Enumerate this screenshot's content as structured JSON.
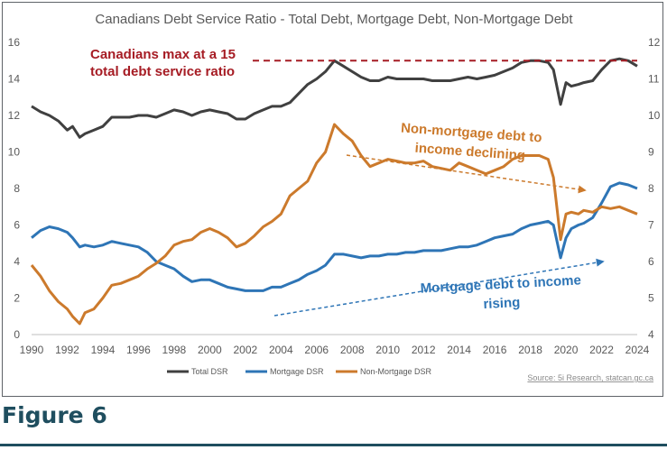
{
  "chart_data": {
    "type": "line",
    "title": "Canadians Debt Service Ratio - Total Debt, Mortgage Debt, Non-Mortgage Debt",
    "x_ticks": [
      "1990",
      "1992",
      "1994",
      "1996",
      "1998",
      "2000",
      "2002",
      "2004",
      "2006",
      "2008",
      "2010",
      "2012",
      "2014",
      "2016",
      "2018",
      "2020",
      "2022",
      "2024"
    ],
    "xlim": [
      1990,
      2024
    ],
    "y_left": {
      "ticks": [
        "0",
        "2",
        "4",
        "6",
        "8",
        "10",
        "12",
        "14",
        "16"
      ],
      "lim": [
        0,
        16
      ]
    },
    "y_right": {
      "ticks": [
        "4",
        "5",
        "6",
        "7",
        "8",
        "9",
        "10",
        "11",
        "12"
      ],
      "lim": [
        4,
        12
      ]
    },
    "series": [
      {
        "name": "Total DSR",
        "axis": "left",
        "color": "#404040",
        "points": [
          [
            1990,
            12.5
          ],
          [
            1990.5,
            12.2
          ],
          [
            1991,
            12.0
          ],
          [
            1991.5,
            11.7
          ],
          [
            1992,
            11.2
          ],
          [
            1992.3,
            11.4
          ],
          [
            1992.7,
            10.8
          ],
          [
            1993,
            11.0
          ],
          [
            1993.5,
            11.2
          ],
          [
            1994,
            11.4
          ],
          [
            1994.5,
            11.9
          ],
          [
            1995,
            11.9
          ],
          [
            1995.5,
            11.9
          ],
          [
            1996,
            12.0
          ],
          [
            1996.5,
            12.0
          ],
          [
            1997,
            11.9
          ],
          [
            1997.5,
            12.1
          ],
          [
            1998,
            12.3
          ],
          [
            1998.5,
            12.2
          ],
          [
            1999,
            12.0
          ],
          [
            1999.5,
            12.2
          ],
          [
            2000,
            12.3
          ],
          [
            2000.5,
            12.2
          ],
          [
            2001,
            12.1
          ],
          [
            2001.5,
            11.8
          ],
          [
            2002,
            11.8
          ],
          [
            2002.5,
            12.1
          ],
          [
            2003,
            12.3
          ],
          [
            2003.5,
            12.5
          ],
          [
            2004,
            12.5
          ],
          [
            2004.5,
            12.7
          ],
          [
            2005,
            13.2
          ],
          [
            2005.5,
            13.7
          ],
          [
            2006,
            14.0
          ],
          [
            2006.5,
            14.4
          ],
          [
            2007,
            15.0
          ],
          [
            2007.5,
            14.7
          ],
          [
            2008,
            14.4
          ],
          [
            2008.5,
            14.1
          ],
          [
            2009,
            13.9
          ],
          [
            2009.5,
            13.9
          ],
          [
            2010,
            14.1
          ],
          [
            2010.5,
            14.0
          ],
          [
            2011,
            14.0
          ],
          [
            2011.5,
            14.0
          ],
          [
            2012,
            14.0
          ],
          [
            2012.5,
            13.9
          ],
          [
            2013,
            13.9
          ],
          [
            2013.5,
            13.9
          ],
          [
            2014,
            14.0
          ],
          [
            2014.5,
            14.1
          ],
          [
            2015,
            14.0
          ],
          [
            2015.5,
            14.1
          ],
          [
            2016,
            14.2
          ],
          [
            2016.5,
            14.4
          ],
          [
            2017,
            14.6
          ],
          [
            2017.5,
            14.9
          ],
          [
            2018,
            15.0
          ],
          [
            2018.5,
            15.0
          ],
          [
            2019,
            14.9
          ],
          [
            2019.3,
            14.5
          ],
          [
            2019.7,
            12.6
          ],
          [
            2020,
            13.8
          ],
          [
            2020.3,
            13.6
          ],
          [
            2020.7,
            13.7
          ],
          [
            2021,
            13.8
          ],
          [
            2021.5,
            13.9
          ],
          [
            2022,
            14.5
          ],
          [
            2022.5,
            15.0
          ],
          [
            2023,
            15.1
          ],
          [
            2023.5,
            15.0
          ],
          [
            2024,
            14.7
          ]
        ]
      },
      {
        "name": "Mortgage DSR",
        "axis": "left",
        "color": "#2e75b6",
        "points": [
          [
            1990,
            5.3
          ],
          [
            1990.5,
            5.7
          ],
          [
            1991,
            5.9
          ],
          [
            1991.5,
            5.8
          ],
          [
            1992,
            5.6
          ],
          [
            1992.3,
            5.3
          ],
          [
            1992.7,
            4.8
          ],
          [
            1993,
            4.9
          ],
          [
            1993.5,
            4.8
          ],
          [
            1994,
            4.9
          ],
          [
            1994.5,
            5.1
          ],
          [
            1995,
            5.0
          ],
          [
            1995.5,
            4.9
          ],
          [
            1996,
            4.8
          ],
          [
            1996.5,
            4.5
          ],
          [
            1997,
            4.0
          ],
          [
            1997.5,
            3.8
          ],
          [
            1998,
            3.6
          ],
          [
            1998.5,
            3.2
          ],
          [
            1999,
            2.9
          ],
          [
            1999.5,
            3.0
          ],
          [
            2000,
            3.0
          ],
          [
            2000.5,
            2.8
          ],
          [
            2001,
            2.6
          ],
          [
            2001.5,
            2.5
          ],
          [
            2002,
            2.4
          ],
          [
            2002.5,
            2.4
          ],
          [
            2003,
            2.4
          ],
          [
            2003.5,
            2.6
          ],
          [
            2004,
            2.6
          ],
          [
            2004.5,
            2.8
          ],
          [
            2005,
            3.0
          ],
          [
            2005.5,
            3.3
          ],
          [
            2006,
            3.5
          ],
          [
            2006.5,
            3.8
          ],
          [
            2007,
            4.4
          ],
          [
            2007.5,
            4.4
          ],
          [
            2008,
            4.3
          ],
          [
            2008.5,
            4.2
          ],
          [
            2009,
            4.3
          ],
          [
            2009.5,
            4.3
          ],
          [
            2010,
            4.4
          ],
          [
            2010.5,
            4.4
          ],
          [
            2011,
            4.5
          ],
          [
            2011.5,
            4.5
          ],
          [
            2012,
            4.6
          ],
          [
            2012.5,
            4.6
          ],
          [
            2013,
            4.6
          ],
          [
            2013.5,
            4.7
          ],
          [
            2014,
            4.8
          ],
          [
            2014.5,
            4.8
          ],
          [
            2015,
            4.9
          ],
          [
            2015.5,
            5.1
          ],
          [
            2016,
            5.3
          ],
          [
            2016.5,
            5.4
          ],
          [
            2017,
            5.5
          ],
          [
            2017.5,
            5.8
          ],
          [
            2018,
            6.0
          ],
          [
            2018.5,
            6.1
          ],
          [
            2019,
            6.2
          ],
          [
            2019.3,
            6.0
          ],
          [
            2019.7,
            4.2
          ],
          [
            2020,
            5.3
          ],
          [
            2020.3,
            5.8
          ],
          [
            2020.7,
            6.0
          ],
          [
            2021,
            6.1
          ],
          [
            2021.5,
            6.4
          ],
          [
            2022,
            7.2
          ],
          [
            2022.5,
            8.1
          ],
          [
            2023,
            8.3
          ],
          [
            2023.5,
            8.2
          ],
          [
            2024,
            8.0
          ]
        ]
      },
      {
        "name": "Non-Mortgage DSR",
        "axis": "right",
        "color": "#cc7a2c",
        "points": [
          [
            1990,
            5.9
          ],
          [
            1990.5,
            5.6
          ],
          [
            1991,
            5.2
          ],
          [
            1991.5,
            4.9
          ],
          [
            1992,
            4.7
          ],
          [
            1992.3,
            4.5
          ],
          [
            1992.7,
            4.3
          ],
          [
            1993,
            4.6
          ],
          [
            1993.5,
            4.7
          ],
          [
            1994,
            5.0
          ],
          [
            1994.5,
            5.35
          ],
          [
            1995,
            5.4
          ],
          [
            1995.5,
            5.5
          ],
          [
            1996,
            5.6
          ],
          [
            1996.5,
            5.8
          ],
          [
            1997,
            5.95
          ],
          [
            1997.5,
            6.15
          ],
          [
            1998,
            6.45
          ],
          [
            1998.5,
            6.55
          ],
          [
            1999,
            6.6
          ],
          [
            1999.5,
            6.8
          ],
          [
            2000,
            6.9
          ],
          [
            2000.5,
            6.8
          ],
          [
            2001,
            6.65
          ],
          [
            2001.5,
            6.4
          ],
          [
            2002,
            6.5
          ],
          [
            2002.5,
            6.7
          ],
          [
            2003,
            6.95
          ],
          [
            2003.5,
            7.1
          ],
          [
            2004,
            7.3
          ],
          [
            2004.5,
            7.8
          ],
          [
            2005,
            8.0
          ],
          [
            2005.5,
            8.2
          ],
          [
            2006,
            8.7
          ],
          [
            2006.5,
            9.0
          ],
          [
            2007,
            9.75
          ],
          [
            2007.5,
            9.5
          ],
          [
            2008,
            9.3
          ],
          [
            2008.5,
            8.9
          ],
          [
            2009,
            8.6
          ],
          [
            2009.5,
            8.7
          ],
          [
            2010,
            8.8
          ],
          [
            2010.5,
            8.75
          ],
          [
            2011,
            8.7
          ],
          [
            2011.5,
            8.7
          ],
          [
            2012,
            8.75
          ],
          [
            2012.5,
            8.6
          ],
          [
            2013,
            8.55
          ],
          [
            2013.5,
            8.5
          ],
          [
            2014,
            8.7
          ],
          [
            2014.5,
            8.6
          ],
          [
            2015,
            8.5
          ],
          [
            2015.5,
            8.4
          ],
          [
            2016,
            8.5
          ],
          [
            2016.5,
            8.6
          ],
          [
            2017,
            8.8
          ],
          [
            2017.5,
            8.9
          ],
          [
            2018,
            8.9
          ],
          [
            2018.5,
            8.9
          ],
          [
            2019,
            8.8
          ],
          [
            2019.3,
            8.3
          ],
          [
            2019.7,
            6.6
          ],
          [
            2020,
            7.3
          ],
          [
            2020.3,
            7.35
          ],
          [
            2020.7,
            7.3
          ],
          [
            2021,
            7.4
          ],
          [
            2021.5,
            7.35
          ],
          [
            2022,
            7.5
          ],
          [
            2022.5,
            7.45
          ],
          [
            2023,
            7.5
          ],
          [
            2023.5,
            7.4
          ],
          [
            2024,
            7.3
          ]
        ]
      }
    ],
    "reference_line": {
      "value": 15,
      "axis": "left",
      "color": "#a61c24",
      "style": "dashed"
    },
    "annotations": [
      {
        "lines": [
          "Canadians max at a 15",
          "total debt service ratio"
        ],
        "color": "#a61c24"
      },
      {
        "lines": [
          "Non-mortgage debt to",
          "income declining"
        ],
        "color": "#cc7a2c"
      },
      {
        "lines": [
          "Mortgage debt to income",
          "rising"
        ],
        "color": "#2e75b6"
      }
    ],
    "legend": {
      "position": "bottom-left"
    },
    "grid": false,
    "source": "Source: 5i Research, statcan.gc.ca"
  },
  "caption": "Figure 6"
}
